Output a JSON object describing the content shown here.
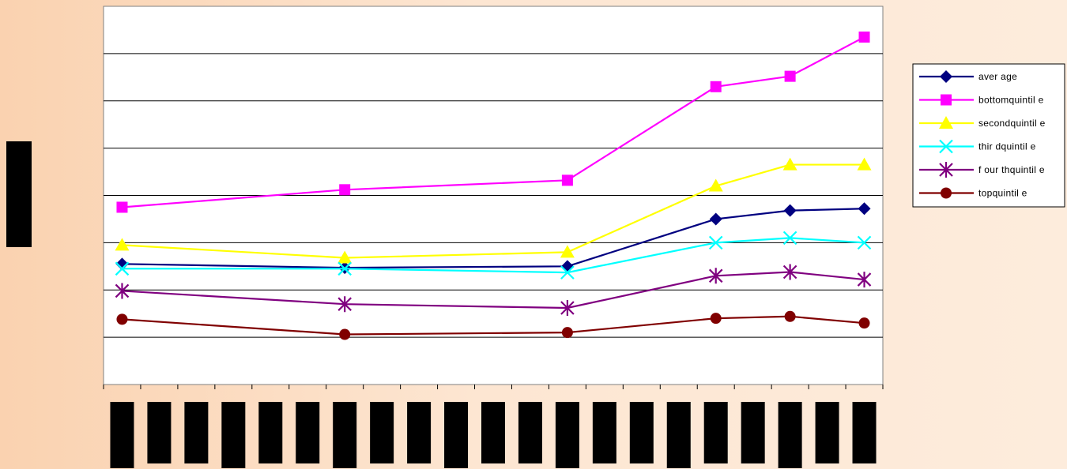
{
  "chart_data": {
    "type": "line",
    "title": "",
    "xlabel": "",
    "ylabel": "",
    "ylim": [
      0,
      8
    ],
    "grid": true,
    "legend_position": "right",
    "x_positions": [
      1,
      7,
      13,
      17,
      19,
      21
    ],
    "x_category_count": 21,
    "series": [
      {
        "name": "aver age",
        "color": "#000080",
        "marker": "diamond",
        "values": [
          2.55,
          2.47,
          2.5,
          3.5,
          3.68,
          3.72
        ]
      },
      {
        "name": "bottomquintil e",
        "color": "#ff00ff",
        "marker": "square",
        "values": [
          3.75,
          4.12,
          4.32,
          6.3,
          6.52,
          7.35
        ]
      },
      {
        "name": "secondquintil e",
        "color": "#ffff00",
        "marker": "triangle",
        "values": [
          2.95,
          2.68,
          2.8,
          4.2,
          4.65,
          4.65
        ]
      },
      {
        "name": "thir dquintil e",
        "color": "#00ffff",
        "marker": "x",
        "values": [
          2.45,
          2.45,
          2.37,
          3.0,
          3.1,
          3.0
        ]
      },
      {
        "name": "f our thquintil e",
        "color": "#800080",
        "marker": "asterisk",
        "values": [
          1.98,
          1.7,
          1.62,
          2.3,
          2.38,
          2.22
        ]
      },
      {
        "name": "topquintil e",
        "color": "#800000",
        "marker": "circle",
        "values": [
          1.38,
          1.06,
          1.1,
          1.4,
          1.44,
          1.3
        ]
      }
    ]
  }
}
